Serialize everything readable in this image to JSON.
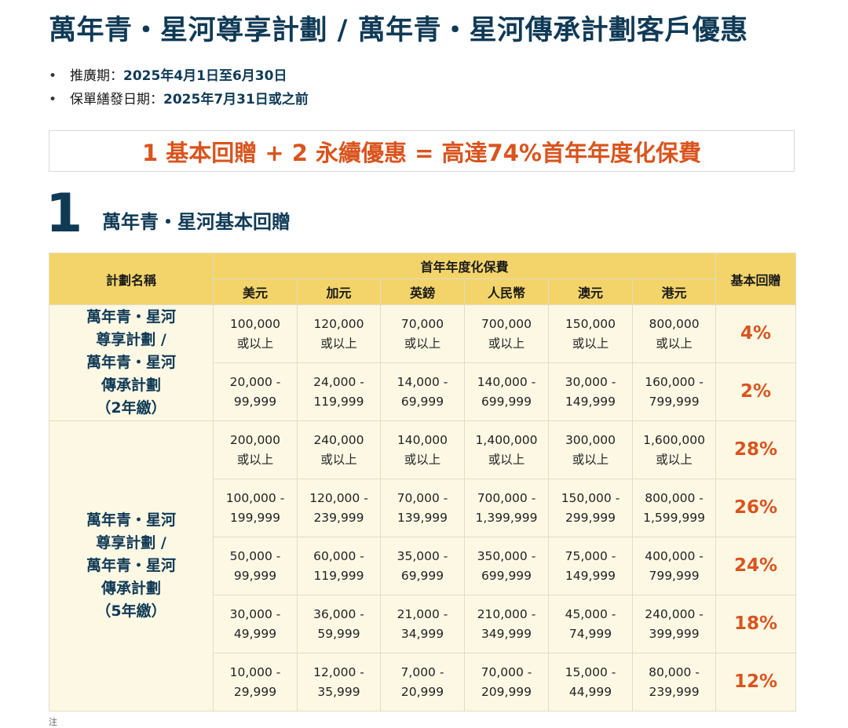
{
  "title": "萬年青・星河尊享計劃 / 萬年青・星河傳承計劃客戶優惠",
  "promo": [
    {
      "label": "推廣期：",
      "value": "2025年4月1日至6月30日"
    },
    {
      "label": "保單繕發日期：",
      "value": "2025年7月31日或之前"
    }
  ],
  "banner": "1 基本回贈 + 2 永續優惠 = 高達74%首年年度化保費",
  "section": {
    "number": "1",
    "title": "萬年青・星河基本回贈"
  },
  "table": {
    "headers": {
      "plan": "計劃名稱",
      "premium": "首年年度化保費",
      "rebate": "基本回贈",
      "currencies": [
        "美元",
        "加元",
        "英鎊",
        "人民幣",
        "澳元",
        "港元"
      ]
    },
    "groups": [
      {
        "plan_lines": [
          "萬年青・星河",
          "尊享計劃 /",
          "萬年青・星河",
          "傳承計劃",
          "（2年繳）"
        ],
        "rows": [
          {
            "cells": [
              [
                "100,000",
                "或以上"
              ],
              [
                "120,000",
                "或以上"
              ],
              [
                "70,000",
                "或以上"
              ],
              [
                "700,000",
                "或以上"
              ],
              [
                "150,000",
                "或以上"
              ],
              [
                "800,000",
                "或以上"
              ]
            ],
            "rebate": "4%"
          },
          {
            "cells": [
              [
                "20,000 -",
                "99,999"
              ],
              [
                "24,000 -",
                "119,999"
              ],
              [
                "14,000 -",
                "69,999"
              ],
              [
                "140,000 -",
                "699,999"
              ],
              [
                "30,000 -",
                "149,999"
              ],
              [
                "160,000 -",
                "799,999"
              ]
            ],
            "rebate": "2%"
          }
        ]
      },
      {
        "plan_lines": [
          "萬年青・星河",
          "尊享計劃 /",
          "萬年青・星河",
          "傳承計劃",
          "（5年繳）"
        ],
        "rows": [
          {
            "cells": [
              [
                "200,000",
                "或以上"
              ],
              [
                "240,000",
                "或以上"
              ],
              [
                "140,000",
                "或以上"
              ],
              [
                "1,400,000",
                "或以上"
              ],
              [
                "300,000",
                "或以上"
              ],
              [
                "1,600,000",
                "或以上"
              ]
            ],
            "rebate": "28%"
          },
          {
            "cells": [
              [
                "100,000 -",
                "199,999"
              ],
              [
                "120,000 -",
                "239,999"
              ],
              [
                "70,000 -",
                "139,999"
              ],
              [
                "700,000 -",
                "1,399,999"
              ],
              [
                "150,000 -",
                "299,999"
              ],
              [
                "800,000 -",
                "1,599,999"
              ]
            ],
            "rebate": "26%"
          },
          {
            "cells": [
              [
                "50,000 -",
                "99,999"
              ],
              [
                "60,000 -",
                "119,999"
              ],
              [
                "35,000 -",
                "69,999"
              ],
              [
                "350,000 -",
                "699,999"
              ],
              [
                "75,000 -",
                "149,999"
              ],
              [
                "400,000 -",
                "799,999"
              ]
            ],
            "rebate": "24%"
          },
          {
            "cells": [
              [
                "30,000 -",
                "49,999"
              ],
              [
                "36,000 -",
                "59,999"
              ],
              [
                "21,000 -",
                "34,999"
              ],
              [
                "210,000 -",
                "349,999"
              ],
              [
                "45,000 -",
                "74,999"
              ],
              [
                "240,000 -",
                "399,999"
              ]
            ],
            "rebate": "18%"
          },
          {
            "cells": [
              [
                "10,000 -",
                "29,999"
              ],
              [
                "12,000 -",
                "35,999"
              ],
              [
                "7,000 -",
                "20,999"
              ],
              [
                "70,000 -",
                "209,999"
              ],
              [
                "15,000 -",
                "44,999"
              ],
              [
                "80,000 -",
                "239,999"
              ]
            ],
            "rebate": "12%"
          }
        ]
      }
    ]
  },
  "footnote_mark": "注"
}
